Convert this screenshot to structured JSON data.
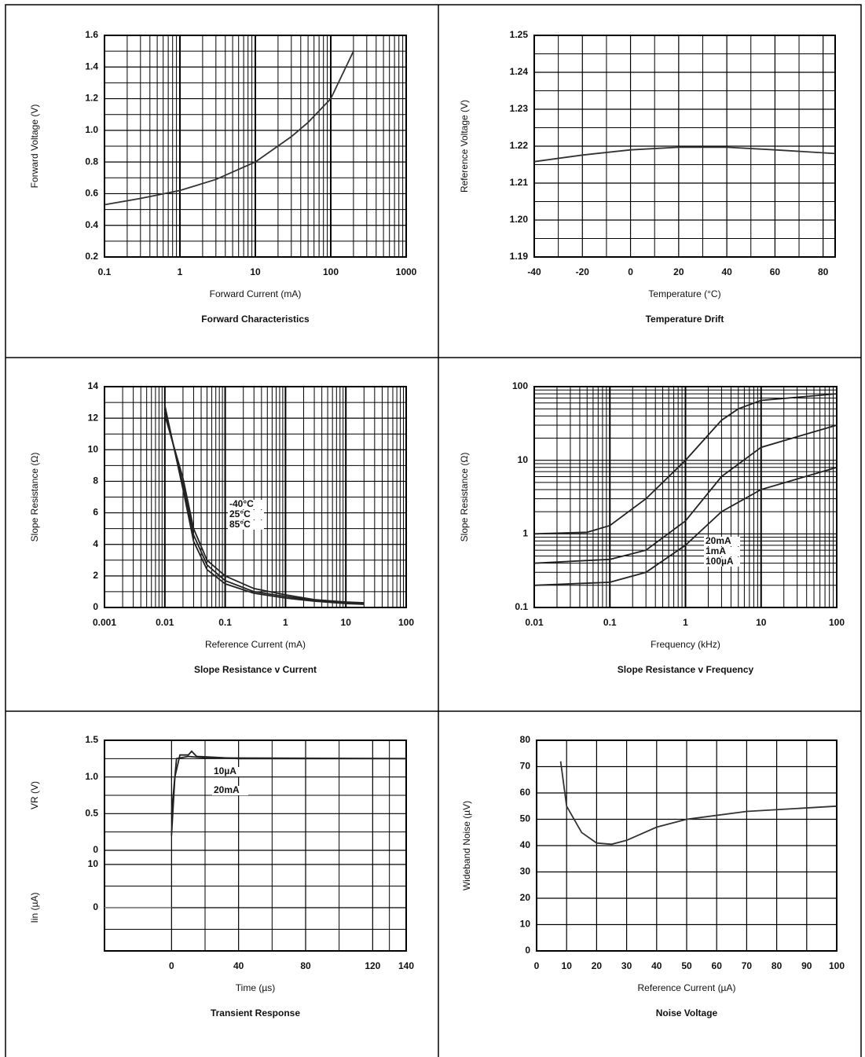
{
  "chart_data": [
    {
      "type": "line",
      "title": "Forward Characteristics",
      "xlabel": "Forward Current (mA)",
      "ylabel": "Forward Voltage (V)",
      "xlog": true,
      "grid": true,
      "minor_grid": true,
      "color": "#333333",
      "xlim": [
        0.1,
        1000
      ],
      "xticks": [
        0.1,
        1,
        10,
        100,
        1000
      ],
      "ylim": [
        0.2,
        1.6
      ],
      "yticks": [
        0.2,
        0.4,
        0.6,
        0.8,
        {
          "value": 1,
          "label": "1.0"
        },
        1.2,
        1.4,
        1.6
      ],
      "x": [
        0.1,
        0.3,
        1,
        3,
        10,
        30,
        50,
        100,
        200
      ],
      "values": [
        0.53,
        0.57,
        0.62,
        0.69,
        0.8,
        0.96,
        1.05,
        1.2,
        1.5
      ]
    },
    {
      "type": "line",
      "title": "Temperature Drift",
      "xlabel": "Temperature (°C)",
      "ylabel": "Reference Voltage (V)",
      "grid": true,
      "minor_grid": true,
      "color": "#333333",
      "xlim": [
        -40,
        85
      ],
      "xticks": [
        -40,
        -20,
        0,
        20,
        40,
        60,
        80
      ],
      "ylim": [
        1.19,
        1.25
      ],
      "yticks": [
        1.19,
        {
          "value": 1.2,
          "label": "1.20"
        },
        1.21,
        1.22,
        1.23,
        1.24,
        1.25
      ],
      "x": [
        -40,
        -20,
        0,
        20,
        40,
        60,
        85
      ],
      "values": [
        1.2158,
        1.2176,
        1.219,
        1.2197,
        1.2197,
        1.219,
        1.218
      ]
    },
    {
      "type": "line",
      "title": "Slope Resistance v Current",
      "xlabel": "Reference Current (mA)",
      "ylabel": "Slope Resistance (Ω)",
      "xlog": true,
      "grid": true,
      "minor_grid": true,
      "xlim": [
        0.001,
        100
      ],
      "xticks": [
        0.001,
        0.01,
        0.1,
        1,
        10,
        100
      ],
      "ylim": [
        0,
        14
      ],
      "yticks": [
        0,
        2,
        4,
        6,
        8,
        10,
        12,
        14
      ],
      "series": [
        {
          "name": "-40°C",
          "color": "#222222",
          "x": [
            0.01,
            0.02,
            0.03,
            0.05,
            0.1,
            0.3,
            1,
            3,
            10,
            20
          ],
          "values": [
            12.8,
            7.5,
            4.2,
            2.4,
            1.5,
            0.9,
            0.6,
            0.4,
            0.25,
            0.2
          ]
        },
        {
          "name": "25°C",
          "color": "#222222",
          "x": [
            0.01,
            0.02,
            0.03,
            0.05,
            0.1,
            0.3,
            1,
            3,
            10,
            20
          ],
          "values": [
            12.5,
            7.8,
            4.6,
            2.7,
            1.7,
            1.0,
            0.7,
            0.45,
            0.3,
            0.25
          ]
        },
        {
          "name": "85°C",
          "color": "#222222",
          "x": [
            0.01,
            0.02,
            0.03,
            0.05,
            0.1,
            0.3,
            1,
            3,
            10,
            20
          ],
          "values": [
            12.2,
            8.2,
            5.0,
            3.0,
            2.0,
            1.2,
            0.8,
            0.5,
            0.35,
            0.3
          ]
        }
      ]
    },
    {
      "type": "line",
      "title": "Slope Resistance v Frequency",
      "xlabel": "Frequency (kHz)",
      "ylabel": "Slope Resistance (Ω)",
      "xlog": true,
      "ylog": true,
      "grid": true,
      "minor_grid": true,
      "xlim": [
        0.01,
        100
      ],
      "xticks": [
        0.01,
        0.1,
        1,
        10,
        100
      ],
      "ylim": [
        0.1,
        100
      ],
      "yticks": [
        0.1,
        1,
        10,
        100
      ],
      "series": [
        {
          "name": "20mA",
          "color": "#222222",
          "x": [
            0.01,
            0.05,
            0.1,
            0.3,
            1,
            3,
            5,
            10,
            100
          ],
          "values": [
            1,
            1.05,
            1.3,
            3,
            10,
            35,
            50,
            65,
            80
          ]
        },
        {
          "name": "1mA",
          "color": "#222222",
          "x": [
            0.01,
            0.1,
            0.3,
            1,
            3,
            10,
            100
          ],
          "values": [
            0.4,
            0.45,
            0.6,
            1.5,
            6,
            15,
            30
          ]
        },
        {
          "name": "100µA",
          "color": "#222222",
          "x": [
            0.01,
            0.1,
            0.3,
            1,
            3,
            10,
            100
          ],
          "values": [
            0.2,
            0.22,
            0.3,
            0.7,
            2,
            4,
            8
          ]
        }
      ]
    },
    {
      "type": "line",
      "title": "Transient Response",
      "xlabel": "Time (µs)",
      "ylabel": "VR (V)",
      "y2label": "Iin (µA)",
      "grid": true,
      "minor_grid": true,
      "xlim": [
        -40,
        140
      ],
      "xticks": [
        0,
        40,
        80,
        120,
        140
      ],
      "ylim": [
        0,
        1.5
      ],
      "yticks": [
        0,
        0.5,
        {
          "value": 1,
          "label": "1.0"
        },
        1.5
      ],
      "y2lim": [
        -10,
        10
      ],
      "y2ticks": [
        0,
        10
      ],
      "series": [
        {
          "name": "10µA",
          "color": "#222222",
          "x": [
            0,
            2,
            5,
            10,
            12,
            15,
            25,
            40,
            140
          ],
          "values": [
            0.2,
            1.0,
            1.3,
            1.3,
            1.35,
            1.28,
            1.27,
            1.25,
            1.25
          ]
        },
        {
          "name": "20mA",
          "color": "#222222",
          "x": [
            0,
            3,
            10,
            20,
            140
          ],
          "values": [
            0.5,
            1.25,
            1.28,
            1.26,
            1.25
          ]
        },
        {
          "color": "#888888",
          "axis": "y2",
          "x": [
            -40,
            0
          ],
          "values": [
            0,
            0
          ]
        }
      ]
    },
    {
      "type": "line",
      "title": "Noise Voltage",
      "xlabel": "Reference Current (µA)",
      "ylabel": "Wideband Noise (µV)",
      "grid": true,
      "color": "#333333",
      "xlim": [
        0,
        100
      ],
      "xticks": [
        0,
        10,
        20,
        30,
        40,
        50,
        60,
        70,
        80,
        90,
        100
      ],
      "ylim": [
        0,
        80
      ],
      "yticks": [
        0,
        10,
        20,
        30,
        40,
        50,
        60,
        70,
        80
      ],
      "x": [
        8,
        10,
        15,
        20,
        25,
        30,
        40,
        50,
        70,
        100
      ],
      "values": [
        72,
        55,
        45,
        41,
        40.5,
        42,
        47,
        50,
        53,
        55
      ]
    }
  ]
}
